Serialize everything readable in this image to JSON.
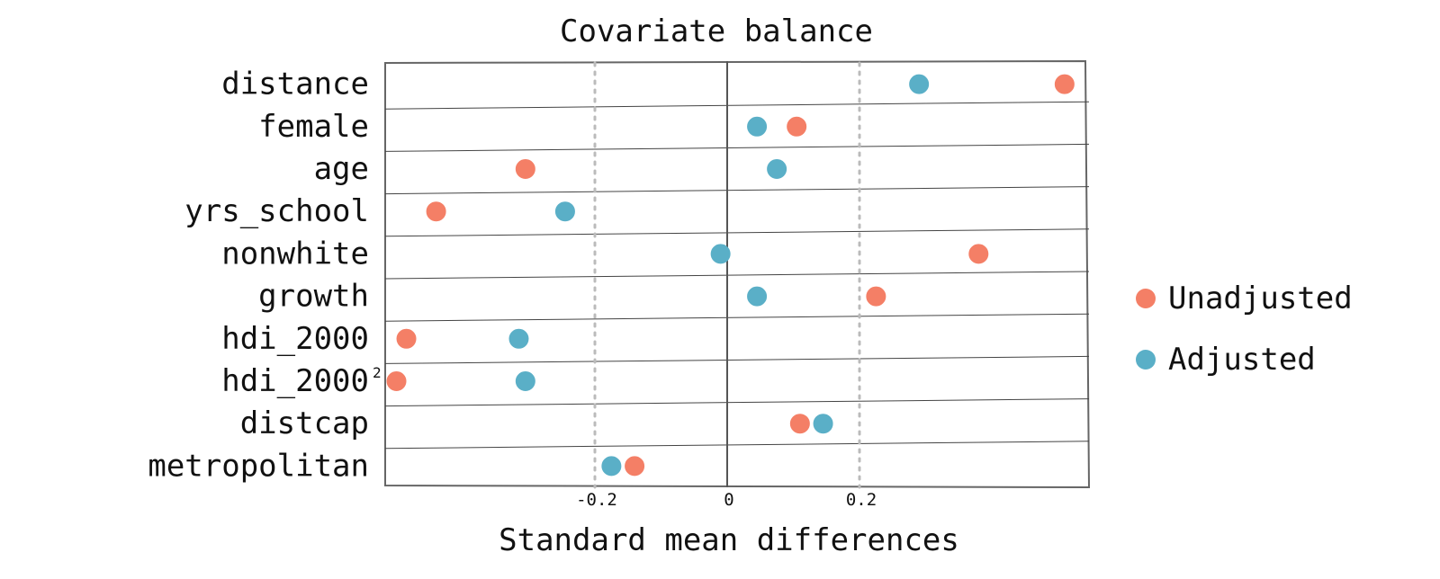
{
  "chart_data": {
    "type": "scatter",
    "title": "Covariate balance",
    "xlabel": "Standard mean differences",
    "ylabel": "",
    "xlim": [
      -0.53,
      0.55
    ],
    "x_ticks": [
      {
        "value": -0.2,
        "label": "-0.2"
      },
      {
        "value": 0,
        "label": "0"
      },
      {
        "value": 0.2,
        "label": "0.2"
      }
    ],
    "reference_lines": [
      -0.2,
      0.2
    ],
    "zero_line": 0,
    "grid": false,
    "legend": "right",
    "categories": [
      "distance",
      "female",
      "age",
      "yrs_school",
      "nonwhite",
      "growth",
      "hdi_2000",
      "hdi_2000",
      "distcap",
      "metropolitan"
    ],
    "category_superscripts": [
      "",
      "",
      "",
      "",
      "",
      "",
      "",
      "2",
      "",
      ""
    ],
    "series": [
      {
        "name": "Unadjusted",
        "color": "#f47f66",
        "values": [
          0.51,
          0.105,
          -0.305,
          -0.44,
          0.38,
          0.225,
          -0.485,
          -0.5,
          0.11,
          -0.14
        ]
      },
      {
        "name": "Adjusted",
        "color": "#5aafc7",
        "values": [
          0.29,
          0.045,
          0.075,
          -0.245,
          -0.01,
          0.045,
          -0.315,
          -0.305,
          0.145,
          -0.175
        ]
      }
    ]
  }
}
